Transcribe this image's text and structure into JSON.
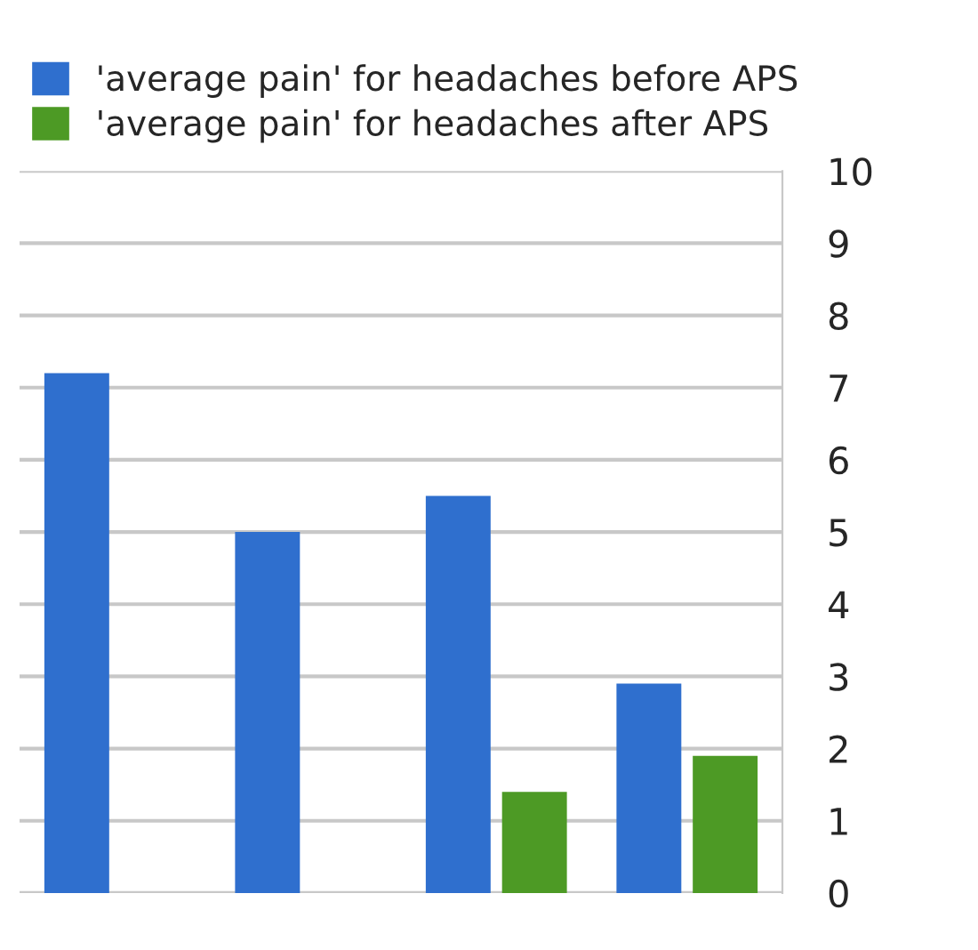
{
  "chart_data": {
    "type": "bar",
    "categories": [
      null,
      null,
      null,
      null
    ],
    "series": [
      {
        "name": "'average pain' for headaches before APS",
        "color": "#2f6fce",
        "values": [
          7.2,
          5.0,
          5.5,
          2.9
        ]
      },
      {
        "name": "'average pain' for headaches after APS",
        "color": "#4d9a25",
        "values": [
          0,
          0,
          1.4,
          1.9
        ]
      }
    ],
    "ylim": [
      0,
      10
    ],
    "yticks": [
      0,
      1,
      2,
      3,
      4,
      5,
      6,
      7,
      8,
      9,
      10
    ],
    "grid": "y",
    "legend": "top left"
  }
}
